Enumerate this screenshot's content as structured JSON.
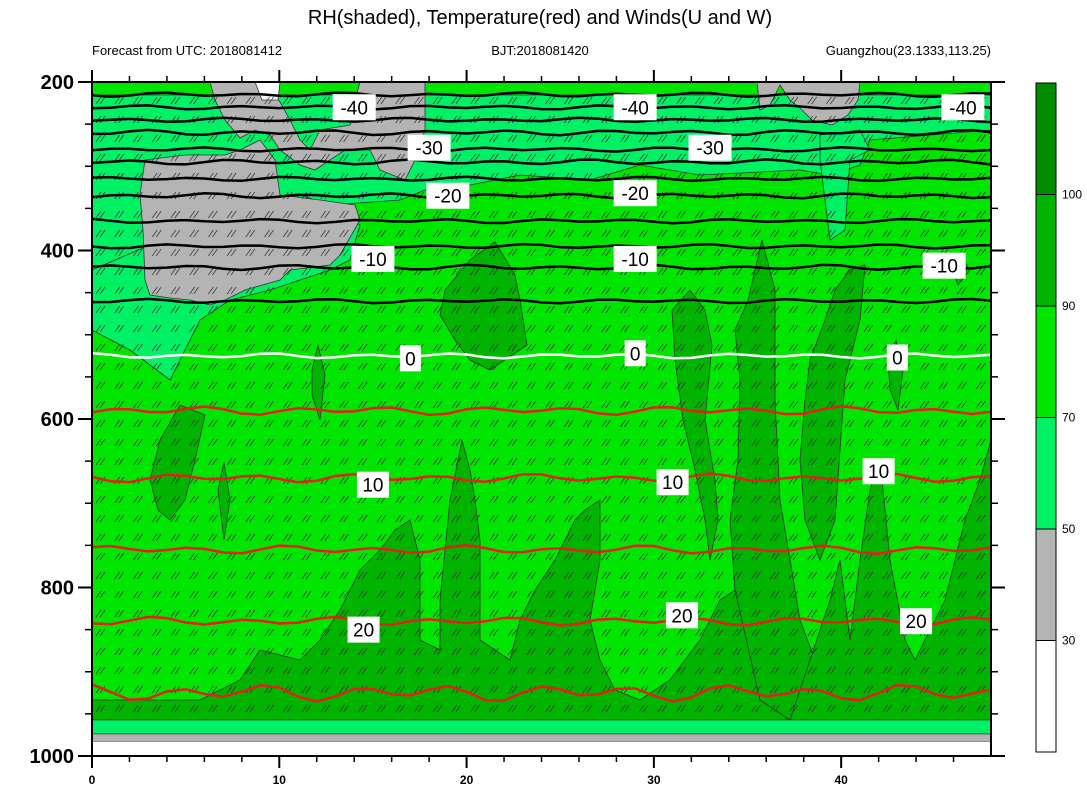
{
  "title": "RH(shaded), Temperature(red) and Winds(U and W)",
  "subtitle_left": "Forecast from UTC: 2018081412",
  "subtitle_center": "BJT:2018081420",
  "subtitle_right": "Guangzhou(23.1333,113.25)",
  "chart_data": {
    "type": "heatmap",
    "title": "RH(shaded), Temperature(red) and Winds(U and W)",
    "x_range": [
      0,
      48
    ],
    "x_ticks": [
      0,
      10,
      20,
      30,
      40
    ],
    "y_range": [
      1000,
      200
    ],
    "y_ticks": [
      200,
      400,
      600,
      800,
      1000
    ],
    "colorbar": {
      "levels": [
        30,
        50,
        70,
        90,
        100
      ],
      "colors": [
        "#ffffff",
        "#b4b4b4",
        "#00f264",
        "#00e600",
        "#00b400",
        "#008c00"
      ],
      "orientation": "vertical"
    },
    "contours": {
      "temperature_lines": [
        {
          "value": -40,
          "color": "#000000",
          "label": "-40",
          "y": 260
        },
        {
          "value": -30,
          "color": "#000000",
          "label": "-30",
          "y": 295
        },
        {
          "value": -20,
          "color": "#000000",
          "label": "-20",
          "y": 335
        },
        {
          "value": -10,
          "color": "#000000",
          "label": "-10",
          "y": 420
        },
        {
          "value": 0,
          "color": "#ffffff",
          "label": "0",
          "y": 525
        },
        {
          "value": 10,
          "color": "#e61e1e",
          "label": "10",
          "y": 670
        },
        {
          "value": 20,
          "color": "#e61e1e",
          "label": "20",
          "y": 840
        }
      ],
      "extra_black_lines_y": [
        215,
        230,
        245,
        280,
        315,
        365,
        395,
        460
      ],
      "extra_red_lines_y": [
        590,
        755,
        925
      ]
    },
    "labels": [
      {
        "text": "-40",
        "x": 14,
        "y": 230
      },
      {
        "text": "-40",
        "x": 29,
        "y": 230
      },
      {
        "text": "-40",
        "x": 46.5,
        "y": 230
      },
      {
        "text": "-30",
        "x": 18,
        "y": 278
      },
      {
        "text": "-30",
        "x": 33,
        "y": 278
      },
      {
        "text": "-20",
        "x": 19,
        "y": 335
      },
      {
        "text": "-20",
        "x": 29,
        "y": 332
      },
      {
        "text": "-10",
        "x": 15,
        "y": 410
      },
      {
        "text": "-10",
        "x": 29,
        "y": 410
      },
      {
        "text": "-10",
        "x": 45.5,
        "y": 418
      },
      {
        "text": "0",
        "x": 17,
        "y": 528
      },
      {
        "text": "0",
        "x": 29,
        "y": 522
      },
      {
        "text": "0",
        "x": 43,
        "y": 527
      },
      {
        "text": "10",
        "x": 15,
        "y": 678
      },
      {
        "text": "10",
        "x": 31,
        "y": 675
      },
      {
        "text": "10",
        "x": 42,
        "y": 662
      },
      {
        "text": "20",
        "x": 14.5,
        "y": 850
      },
      {
        "text": "20",
        "x": 31.5,
        "y": 833
      },
      {
        "text": "20",
        "x": 44,
        "y": 840
      }
    ]
  }
}
